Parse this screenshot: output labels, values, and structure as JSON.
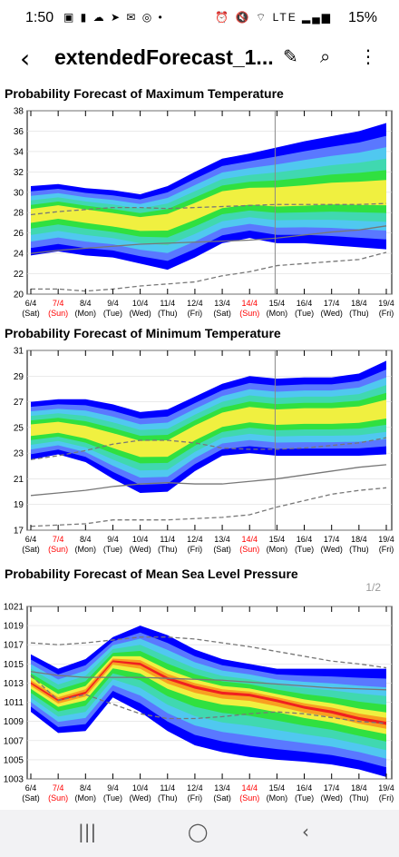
{
  "status": {
    "time": "1:50",
    "battery": "15%",
    "left_icons": "▣ ▮ ☁ ➤ ✉ ◎ •",
    "right_icons": "⏰ 🔇 ⌔ LTE ▂▄▆"
  },
  "appbar": {
    "title": "extendedForecast_1..."
  },
  "page_indicator": "1/2",
  "colors": {
    "blue": "#0000ff",
    "light_blue": "#5a78ff",
    "cyan": "#50c8f0",
    "teal": "#40d8b0",
    "green": "#30e040",
    "yellow": "#f0f040",
    "orange": "#f8a020",
    "red": "#f02020",
    "weekend": "#ff0000"
  },
  "x_ticks": [
    {
      "d": "6/4",
      "w": "(Sat)",
      "red": false
    },
    {
      "d": "7/4",
      "w": "(Sun)",
      "red": true
    },
    {
      "d": "8/4",
      "w": "(Mon)",
      "red": false
    },
    {
      "d": "9/4",
      "w": "(Tue)",
      "red": false
    },
    {
      "d": "10/4",
      "w": "(Wed)",
      "red": false
    },
    {
      "d": "11/4",
      "w": "(Thu)",
      "red": false
    },
    {
      "d": "12/4",
      "w": "(Fri)",
      "red": false
    },
    {
      "d": "13/4",
      "w": "(Sat)",
      "red": false
    },
    {
      "d": "14/4",
      "w": "(Sun)",
      "red": true
    },
    {
      "d": "15/4",
      "w": "(Mon)",
      "red": false
    },
    {
      "d": "16/4",
      "w": "(Tue)",
      "red": false
    },
    {
      "d": "17/4",
      "w": "(Wed)",
      "red": false
    },
    {
      "d": "18/4",
      "w": "(Thu)",
      "red": false
    },
    {
      "d": "19/4",
      "w": "(Fri)",
      "red": false
    }
  ],
  "chart_data": [
    {
      "type": "area",
      "title": "Probability Forecast of Maximum Temperature",
      "ylim": [
        20,
        38
      ],
      "yticks": [
        20,
        22,
        24,
        26,
        28,
        30,
        32,
        34,
        36,
        38
      ],
      "outer_upper": [
        30.6,
        30.8,
        30.4,
        30.2,
        29.8,
        30.6,
        32.0,
        33.3,
        33.8,
        34.4,
        35.0,
        35.5,
        36.0,
        36.8
      ],
      "outer_lower": [
        23.8,
        24.2,
        23.8,
        23.6,
        23.0,
        22.4,
        23.6,
        25.0,
        25.5,
        25.0,
        25.0,
        24.8,
        24.6,
        24.4
      ],
      "center": [
        27.8,
        28.2,
        27.8,
        27.4,
        27.0,
        27.2,
        28.2,
        29.3,
        29.6,
        29.5,
        29.6,
        29.8,
        29.8,
        29.8
      ],
      "dash_upper": [
        27.8,
        28.1,
        28.3,
        28.5,
        28.5,
        28.4,
        28.5,
        28.6,
        28.7,
        28.8,
        28.8,
        28.8,
        28.8,
        28.9
      ],
      "dash_lower": [
        20.5,
        20.5,
        20.3,
        20.5,
        20.8,
        21.0,
        21.2,
        21.8,
        22.2,
        22.8,
        23.0,
        23.2,
        23.4,
        24.1
      ],
      "solid": [
        24.0,
        24.3,
        24.5,
        24.7,
        24.9,
        25.0,
        25.1,
        25.2,
        25.3,
        25.5,
        25.8,
        26.1,
        26.3,
        26.7
      ]
    },
    {
      "type": "area",
      "title": "Probability Forecast of Minimum Temperature",
      "ylim": [
        17,
        31
      ],
      "yticks": [
        17,
        19,
        21,
        23,
        25,
        27,
        29,
        31
      ],
      "outer_upper": [
        27.0,
        27.2,
        27.2,
        26.8,
        26.2,
        26.4,
        27.4,
        28.4,
        29.0,
        28.8,
        28.9,
        28.9,
        29.2,
        30.2
      ],
      "outer_lower": [
        22.5,
        22.9,
        22.3,
        21.0,
        19.9,
        20.0,
        21.6,
        22.8,
        23.0,
        22.8,
        22.8,
        22.8,
        22.8,
        22.9
      ],
      "center": [
        24.8,
        25.0,
        24.6,
        24.0,
        23.4,
        23.4,
        24.6,
        25.6,
        26.0,
        25.8,
        25.9,
        25.9,
        26.0,
        26.4
      ],
      "dash_upper": [
        22.5,
        22.8,
        23.2,
        23.7,
        24.0,
        24.0,
        23.8,
        23.4,
        23.3,
        23.3,
        23.4,
        23.6,
        23.8,
        24.2
      ],
      "dash_lower": [
        17.3,
        17.4,
        17.5,
        17.8,
        17.8,
        17.8,
        17.9,
        18.0,
        18.2,
        18.8,
        19.3,
        19.8,
        20.1,
        20.3
      ],
      "solid": [
        19.7,
        19.9,
        20.1,
        20.4,
        20.6,
        20.7,
        20.6,
        20.6,
        20.8,
        21.0,
        21.3,
        21.6,
        21.9,
        22.1
      ]
    },
    {
      "type": "area",
      "title": "Probability Forecast of Mean Sea Level Pressure",
      "ylim": [
        1003,
        1021
      ],
      "yticks": [
        1003,
        1005,
        1007,
        1009,
        1011,
        1013,
        1015,
        1017,
        1019,
        1021
      ],
      "outer_upper": [
        1016.0,
        1014.5,
        1015.5,
        1017.8,
        1019.0,
        1018.0,
        1016.5,
        1015.5,
        1015.0,
        1014.5,
        1014.5,
        1014.5,
        1014.5,
        1014.5
      ],
      "outer_lower": [
        1010.0,
        1007.8,
        1008.0,
        1011.5,
        1010.0,
        1008.0,
        1006.5,
        1005.8,
        1005.3,
        1005.0,
        1004.8,
        1004.5,
        1004.0,
        1003.2
      ],
      "center": [
        1013.0,
        1011.2,
        1012.0,
        1015.3,
        1015.0,
        1013.5,
        1012.6,
        1012.0,
        1011.8,
        1011.2,
        1010.5,
        1010.0,
        1009.3,
        1008.8
      ],
      "dash_upper": [
        1017.2,
        1017.0,
        1017.2,
        1017.5,
        1017.8,
        1017.8,
        1017.6,
        1017.2,
        1016.8,
        1016.3,
        1015.8,
        1015.3,
        1015.0,
        1014.6
      ],
      "dash_lower": [
        1013.8,
        1011.2,
        1011.8,
        1010.8,
        1009.8,
        1009.3,
        1009.3,
        1009.5,
        1009.8,
        1010.0,
        1009.8,
        1009.4,
        1009.0,
        1008.8
      ],
      "solid": [
        1014.2,
        1013.8,
        1013.6,
        1013.6,
        1013.6,
        1013.5,
        1013.4,
        1013.3,
        1013.1,
        1012.9,
        1012.7,
        1012.5,
        1012.4,
        1012.3
      ]
    }
  ]
}
